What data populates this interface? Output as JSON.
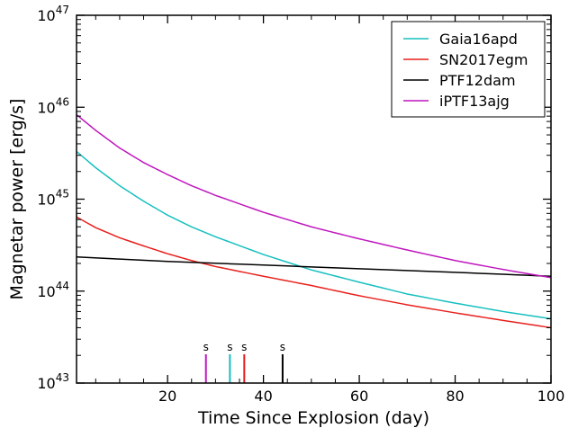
{
  "chart_data": {
    "type": "line",
    "xlabel": "Time Since Explosion (day)",
    "ylabel": "Magnetar power [erg/s]",
    "xlim": [
      1,
      100
    ],
    "ylim_exponents": [
      43,
      47
    ],
    "yscale": "log",
    "y_tick_base": "10",
    "x_ticks": [
      20,
      40,
      60,
      80,
      100
    ],
    "y_tick_exponents": [
      43,
      44,
      45,
      46,
      47
    ],
    "legend_position": "top-right",
    "series": [
      {
        "name": "Gaia16apd",
        "color": "#17bfbf",
        "x": [
          1,
          5,
          10,
          15,
          20,
          25,
          30,
          40,
          50,
          60,
          70,
          80,
          90,
          100
        ],
        "y": [
          3.3e+45,
          2.2e+45,
          1.4e+45,
          9.5e+44,
          6.7e+44,
          5e+44,
          3.9e+44,
          2.5e+44,
          1.7e+44,
          1.25e+44,
          9.3e+43,
          7.4e+43,
          6e+43,
          5e+43
        ]
      },
      {
        "name": "SN2017egm",
        "color": "#e8201c",
        "x": [
          1,
          5,
          10,
          15,
          20,
          25,
          30,
          40,
          50,
          60,
          70,
          80,
          90,
          100
        ],
        "y": [
          6.4e+44,
          4.9e+44,
          3.8e+44,
          3.1e+44,
          2.55e+44,
          2.15e+44,
          1.85e+44,
          1.45e+44,
          1.15e+44,
          8.9e+43,
          7.1e+43,
          5.8e+43,
          4.8e+43,
          4e+43
        ]
      },
      {
        "name": "PTF12dam",
        "color": "#000000",
        "x": [
          1,
          20,
          40,
          60,
          80,
          100
        ],
        "y": [
          2.35e+44,
          2.1e+44,
          1.92e+44,
          1.75e+44,
          1.6e+44,
          1.45e+44
        ]
      },
      {
        "name": "iPTF13ajg",
        "color": "#bf17bf",
        "x": [
          1,
          5,
          10,
          15,
          20,
          25,
          30,
          40,
          50,
          60,
          70,
          80,
          90,
          100
        ],
        "y": [
          8.3e+45,
          5.6e+45,
          3.6e+45,
          2.5e+45,
          1.85e+45,
          1.4e+45,
          1.1e+45,
          7.2e+44,
          5e+44,
          3.7e+44,
          2.8e+44,
          2.15e+44,
          1.72e+44,
          1.4e+44
        ]
      }
    ],
    "markers": [
      {
        "label": "s",
        "x": 28,
        "color": "#bf17bf"
      },
      {
        "label": "s",
        "x": 33,
        "color": "#17bfbf"
      },
      {
        "label": "s",
        "x": 36,
        "color": "#e8201c"
      },
      {
        "label": "s",
        "x": 44,
        "color": "#000000"
      }
    ]
  }
}
